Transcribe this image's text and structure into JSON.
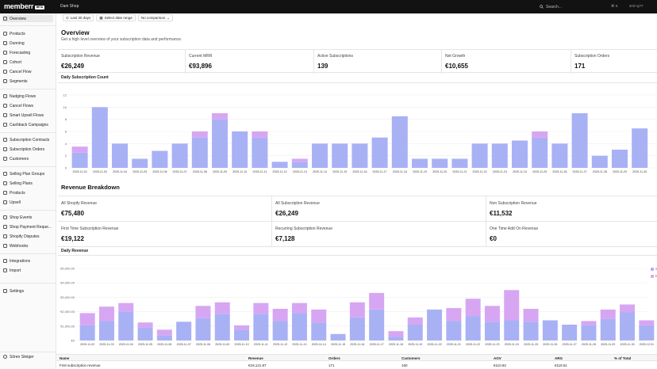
{
  "app": {
    "logo": "memberr",
    "logo_badge": "BETA",
    "shop": "Dani Shop",
    "search_placeholder": "Search...",
    "search_shortcut": "⌘ K",
    "user_short": "s!!ri+q??"
  },
  "sidebar": {
    "items": [
      {
        "label": "Overview",
        "icon": "home-icon",
        "active": true
      },
      {
        "label": "Products",
        "icon": "box-icon"
      },
      {
        "label": "Dunning",
        "icon": "refresh-icon"
      },
      {
        "label": "Forecasting",
        "icon": "chart-icon"
      },
      {
        "label": "Cohort",
        "icon": "grid-icon"
      },
      {
        "label": "Cancel Flow",
        "icon": "cancel-icon"
      },
      {
        "label": "Segments",
        "icon": "segments-icon"
      },
      {
        "label": "Nudging Flows",
        "icon": "flow-icon"
      },
      {
        "label": "Cancel Flows",
        "icon": "flow-icon"
      },
      {
        "label": "Smart Upsell Flows",
        "icon": "upsell-icon"
      },
      {
        "label": "Cashback Campaigns",
        "icon": "cash-icon"
      },
      {
        "label": "Subscription Contracts",
        "icon": "contract-icon"
      },
      {
        "label": "Subscription Orders",
        "icon": "orders-icon"
      },
      {
        "label": "Customers",
        "icon": "users-icon"
      },
      {
        "label": "Selling Plan Groups",
        "icon": "group-icon"
      },
      {
        "label": "Selling Plans",
        "icon": "plan-icon"
      },
      {
        "label": "Products",
        "icon": "box-icon"
      },
      {
        "label": "Upsell",
        "icon": "upsell-icon"
      },
      {
        "label": "Shop Events",
        "icon": "events-icon"
      },
      {
        "label": "Shop Payment Reque...",
        "icon": "payment-icon"
      },
      {
        "label": "Shopify Disputes",
        "icon": "dispute-icon"
      },
      {
        "label": "Webhooks",
        "icon": "webhook-icon"
      },
      {
        "label": "Integrations",
        "icon": "plug-icon"
      },
      {
        "label": "Import",
        "icon": "import-icon"
      },
      {
        "label": "Settings",
        "icon": "gear-icon"
      }
    ],
    "user": "Sören Steiger"
  },
  "filters": {
    "range": "Last 30 days",
    "date": "Select date range",
    "comparison": "No comparison"
  },
  "overview": {
    "title": "Overview",
    "subtitle": "Get a high level overview of your subscription data and performance."
  },
  "kpis": [
    {
      "label": "Subscription Revenue",
      "value": "€26,249"
    },
    {
      "label": "Current MRR",
      "value": "€93,896"
    },
    {
      "label": "Active Subscriptions",
      "value": "139"
    },
    {
      "label": "Net Growth",
      "value": "€10,655"
    },
    {
      "label": "Subscription Orders",
      "value": "171"
    }
  ],
  "daily_count_title": "Daily Subscription Count",
  "revenue_breakdown": {
    "title": "Revenue Breakdown",
    "cells": [
      {
        "label": "All Shopify Revenue",
        "value": "€75,480"
      },
      {
        "label": "All Subscription Revenue",
        "value": "€26,249"
      },
      {
        "label": "Non Subscription Revenue",
        "value": "€11,532"
      },
      {
        "label": "First Time Subscription Revenue",
        "value": "€19,122"
      },
      {
        "label": "Recurring Subscription Revenue",
        "value": "€7,128"
      },
      {
        "label": "One Time Add On Revenue",
        "value": "€0"
      }
    ]
  },
  "daily_revenue_title": "Daily Revenue",
  "legend": [
    "Su",
    "N"
  ],
  "table": {
    "headers": [
      "Name",
      "Revenue",
      "Orders",
      "Customers",
      "AOV",
      "ARG",
      "% of Total"
    ],
    "row": [
      "First subscription revenue",
      "€19,121.87",
      "171",
      "160",
      "€110.82",
      "€119.51",
      ""
    ]
  },
  "colors": {
    "primary": "#a9b1f5",
    "secondary": "#d7a6f3"
  },
  "chart_data": [
    {
      "type": "bar",
      "title": "Daily Subscription Count",
      "categories": [
        "2025-11-02",
        "2025-11-03",
        "2025-11-04",
        "2025-11-05",
        "2025-11-06",
        "2025-11-07",
        "2025-11-08",
        "2025-11-09",
        "2025-11-10",
        "2025-11-11",
        "2025-11-12",
        "2025-11-13",
        "2025-11-14",
        "2025-11-15",
        "2025-11-16",
        "2025-11-17",
        "2025-11-18",
        "2025-11-19",
        "2025-11-20",
        "2025-11-21",
        "2025-11-22",
        "2025-11-23",
        "2025-11-24",
        "2025-11-25",
        "2025-11-26",
        "2025-11-27",
        "2025-11-28",
        "2025-11-29",
        "2025-11-30"
      ],
      "series": [
        {
          "values": [
            2.5,
            10,
            4,
            1.5,
            2.8,
            4,
            5,
            8,
            6,
            5,
            1,
            1,
            4,
            4,
            4,
            5,
            8.5,
            1.5,
            1.5,
            1.5,
            4,
            4,
            4.5,
            5,
            4,
            9,
            2,
            3,
            6.5
          ]
        },
        {
          "values": [
            1,
            0,
            0,
            0,
            0,
            0,
            1,
            1,
            0,
            1,
            0,
            0.5,
            0,
            0,
            0,
            0,
            0,
            0,
            0,
            0,
            0,
            0,
            0,
            1,
            0,
            0,
            0,
            0,
            0
          ]
        }
      ],
      "ylim": [
        0,
        12
      ],
      "yticks": [
        "0",
        "2",
        "4",
        "6",
        "8",
        "10",
        "12"
      ]
    },
    {
      "type": "bar",
      "title": "Daily Revenue",
      "categories": [
        "2025-11-02",
        "2025-11-03",
        "2025-11-04",
        "2025-11-05",
        "2025-11-06",
        "2025-11-07",
        "2025-11-08",
        "2025-11-09",
        "2025-11-10",
        "2025-11-11",
        "2025-11-12",
        "2025-11-13",
        "2025-11-14",
        "2025-11-15",
        "2025-11-16",
        "2025-11-17",
        "2025-11-18",
        "2025-11-19",
        "2025-11-20",
        "2025-11-21",
        "2025-11-22",
        "2025-11-23",
        "2025-11-24",
        "2025-11-25",
        "2025-11-26",
        "2025-11-27",
        "2025-11-28",
        "2025-11-29",
        "2025-11-30",
        "2025-12-01"
      ],
      "series": [
        {
          "values": [
            1050,
            1350,
            2000,
            900,
            350,
            1300,
            1550,
            1850,
            750,
            1850,
            1350,
            1900,
            1250,
            450,
            1600,
            2150,
            250,
            1100,
            2150,
            1350,
            1700,
            1300,
            1400,
            1300,
            1400,
            1100,
            1050,
            1500,
            1950,
            1050
          ]
        },
        {
          "values": [
            850,
            1000,
            600,
            350,
            400,
            0,
            850,
            800,
            300,
            750,
            850,
            700,
            900,
            0,
            1050,
            1150,
            400,
            500,
            0,
            900,
            1200,
            1100,
            2100,
            900,
            0,
            0,
            300,
            650,
            550,
            350
          ]
        }
      ],
      "ylim": [
        0,
        5000
      ],
      "yticks": [
        "€0",
        "€1,000.00",
        "€2,000.00",
        "€3,000.00",
        "€4,000.00",
        "€5,000.00"
      ]
    }
  ]
}
